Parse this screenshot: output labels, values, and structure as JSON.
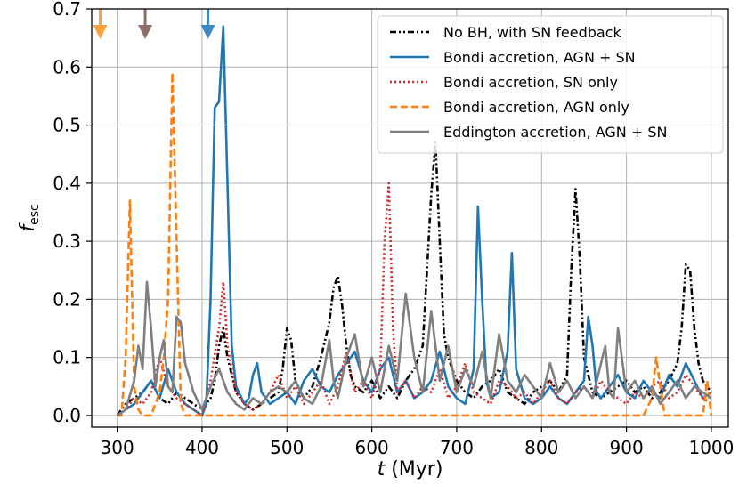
{
  "chart_data": {
    "type": "line",
    "xlabel_italic": "t",
    "xlabel_rest": " (Myr)",
    "ylabel_main": "f",
    "ylabel_sub": "esc",
    "xlim": [
      270,
      1020
    ],
    "ylim": [
      -0.02,
      0.7
    ],
    "xticks": [
      300,
      400,
      500,
      600,
      700,
      800,
      900,
      1000
    ],
    "yticks": [
      0.0,
      0.1,
      0.2,
      0.3,
      0.4,
      0.5,
      0.6,
      0.7
    ],
    "ytick_labels": [
      "0.0",
      "0.1",
      "0.2",
      "0.3",
      "0.4",
      "0.5",
      "0.6",
      "0.7"
    ],
    "grid": true,
    "legend_position": "top-right",
    "arrows": [
      {
        "x": 280,
        "color": "#ff9f3f",
        "name": "orange-arrow"
      },
      {
        "x": 333,
        "color": "#8c6d67",
        "name": "brown-arrow"
      },
      {
        "x": 407,
        "color": "#3d89c4",
        "name": "blue-arrow"
      }
    ],
    "series": [
      {
        "name": "No BH, with SN feedback",
        "color": "#000000",
        "dash": "7 3 2 3 2 3",
        "x": [
          300,
          310,
          320,
          330,
          340,
          350,
          360,
          370,
          380,
          390,
          400,
          410,
          415,
          420,
          425,
          430,
          440,
          450,
          460,
          470,
          480,
          490,
          495,
          500,
          505,
          510,
          520,
          530,
          540,
          550,
          555,
          560,
          565,
          570,
          575,
          580,
          590,
          600,
          610,
          615,
          620,
          625,
          630,
          640,
          650,
          660,
          665,
          670,
          675,
          680,
          685,
          690,
          700,
          710,
          720,
          730,
          740,
          750,
          760,
          770,
          780,
          790,
          800,
          810,
          820,
          830,
          835,
          840,
          845,
          850,
          860,
          870,
          880,
          890,
          900,
          910,
          920,
          930,
          940,
          950,
          960,
          965,
          970,
          975,
          980,
          985,
          990,
          1000
        ],
        "y": [
          0.0,
          0.02,
          0.03,
          0.04,
          0.06,
          0.03,
          0.02,
          0.04,
          0.03,
          0.02,
          0.01,
          0.03,
          0.06,
          0.12,
          0.15,
          0.1,
          0.04,
          0.02,
          0.01,
          0.02,
          0.03,
          0.04,
          0.08,
          0.15,
          0.13,
          0.06,
          0.03,
          0.05,
          0.1,
          0.16,
          0.22,
          0.24,
          0.19,
          0.12,
          0.07,
          0.05,
          0.04,
          0.06,
          0.03,
          0.04,
          0.05,
          0.04,
          0.03,
          0.06,
          0.08,
          0.12,
          0.25,
          0.38,
          0.47,
          0.3,
          0.14,
          0.1,
          0.06,
          0.04,
          0.03,
          0.05,
          0.06,
          0.08,
          0.04,
          0.03,
          0.02,
          0.04,
          0.05,
          0.06,
          0.04,
          0.07,
          0.25,
          0.39,
          0.27,
          0.1,
          0.04,
          0.03,
          0.04,
          0.05,
          0.06,
          0.04,
          0.05,
          0.03,
          0.04,
          0.06,
          0.09,
          0.15,
          0.26,
          0.25,
          0.15,
          0.09,
          0.06,
          0.04
        ]
      },
      {
        "name": "Bondi accretion, AGN + SN",
        "color": "#1f77b4",
        "dash": "",
        "x": [
          300,
          310,
          320,
          330,
          340,
          350,
          360,
          370,
          380,
          390,
          400,
          405,
          410,
          415,
          420,
          425,
          430,
          435,
          440,
          450,
          455,
          460,
          465,
          470,
          480,
          490,
          500,
          510,
          520,
          530,
          540,
          550,
          560,
          570,
          580,
          590,
          600,
          610,
          620,
          630,
          640,
          650,
          660,
          670,
          680,
          690,
          700,
          710,
          720,
          725,
          730,
          735,
          740,
          750,
          760,
          765,
          770,
          780,
          790,
          800,
          810,
          820,
          830,
          840,
          850,
          855,
          860,
          865,
          870,
          880,
          890,
          900,
          910,
          920,
          930,
          940,
          950,
          960,
          970,
          980,
          990,
          1000
        ],
        "y": [
          0.0,
          0.01,
          0.02,
          0.04,
          0.06,
          0.03,
          0.08,
          0.04,
          0.02,
          0.01,
          0.0,
          0.02,
          0.2,
          0.53,
          0.54,
          0.67,
          0.4,
          0.12,
          0.05,
          0.02,
          0.03,
          0.07,
          0.09,
          0.04,
          0.02,
          0.03,
          0.04,
          0.02,
          0.06,
          0.08,
          0.05,
          0.04,
          0.07,
          0.09,
          0.11,
          0.06,
          0.04,
          0.08,
          0.1,
          0.04,
          0.06,
          0.03,
          0.04,
          0.06,
          0.11,
          0.05,
          0.03,
          0.02,
          0.08,
          0.36,
          0.2,
          0.06,
          0.03,
          0.04,
          0.11,
          0.28,
          0.08,
          0.03,
          0.02,
          0.03,
          0.05,
          0.03,
          0.02,
          0.04,
          0.06,
          0.17,
          0.12,
          0.04,
          0.03,
          0.05,
          0.07,
          0.04,
          0.03,
          0.06,
          0.04,
          0.03,
          0.07,
          0.05,
          0.09,
          0.06,
          0.03,
          0.04
        ]
      },
      {
        "name": "Bondi accretion, SN only",
        "color": "#d62728",
        "dash": "2 3",
        "x": [
          300,
          310,
          320,
          330,
          340,
          350,
          360,
          370,
          380,
          390,
          400,
          410,
          420,
          425,
          430,
          440,
          450,
          460,
          470,
          480,
          490,
          500,
          510,
          520,
          530,
          540,
          550,
          560,
          570,
          580,
          590,
          600,
          610,
          615,
          620,
          625,
          630,
          640,
          650,
          660,
          670,
          680,
          690,
          700,
          710,
          720,
          730,
          740,
          750,
          760,
          770,
          780,
          790,
          800,
          810,
          820,
          830,
          840,
          850,
          860,
          870,
          880,
          890,
          900,
          910,
          920,
          930,
          940,
          950,
          960,
          970,
          980,
          990,
          1000
        ],
        "y": [
          0.0,
          0.01,
          0.03,
          0.02,
          0.04,
          0.1,
          0.05,
          0.03,
          0.02,
          0.01,
          0.0,
          0.06,
          0.15,
          0.23,
          0.12,
          0.04,
          0.02,
          0.01,
          0.02,
          0.04,
          0.07,
          0.03,
          0.05,
          0.02,
          0.04,
          0.06,
          0.02,
          0.05,
          0.11,
          0.04,
          0.06,
          0.03,
          0.08,
          0.3,
          0.4,
          0.15,
          0.04,
          0.06,
          0.03,
          0.05,
          0.04,
          0.08,
          0.03,
          0.05,
          0.09,
          0.04,
          0.03,
          0.02,
          0.06,
          0.05,
          0.03,
          0.04,
          0.02,
          0.04,
          0.06,
          0.03,
          0.02,
          0.04,
          0.05,
          0.03,
          0.06,
          0.04,
          0.03,
          0.02,
          0.04,
          0.03,
          0.05,
          0.06,
          0.03,
          0.04,
          0.07,
          0.05,
          0.03,
          0.02
        ]
      },
      {
        "name": "Bondi accretion, AGN only",
        "color": "#ff7f0e",
        "dash": "8 4",
        "x": [
          300,
          305,
          310,
          315,
          320,
          325,
          330,
          340,
          350,
          355,
          360,
          365,
          370,
          375,
          380,
          390,
          400,
          420,
          450,
          500,
          550,
          600,
          650,
          700,
          750,
          800,
          850,
          900,
          920,
          930,
          935,
          940,
          945,
          950,
          960,
          970,
          980,
          990,
          995,
          1000
        ],
        "y": [
          0.0,
          0.0,
          0.1,
          0.37,
          0.05,
          0.01,
          0.0,
          0.0,
          0.04,
          0.1,
          0.2,
          0.59,
          0.3,
          0.02,
          0.0,
          0.0,
          0.0,
          0.0,
          0.0,
          0.0,
          0.0,
          0.0,
          0.0,
          0.0,
          0.0,
          0.0,
          0.0,
          0.0,
          0.0,
          0.03,
          0.1,
          0.05,
          0.0,
          0.0,
          0.0,
          0.0,
          0.0,
          0.0,
          0.06,
          0.0
        ]
      },
      {
        "name": "Eddington accretion, AGN + SN",
        "color": "#7f7f7f",
        "dash": "",
        "x": [
          300,
          310,
          320,
          325,
          330,
          335,
          340,
          345,
          350,
          355,
          360,
          365,
          370,
          375,
          380,
          390,
          400,
          410,
          420,
          430,
          440,
          450,
          460,
          470,
          480,
          490,
          500,
          510,
          520,
          530,
          540,
          550,
          555,
          560,
          570,
          580,
          590,
          600,
          610,
          620,
          630,
          640,
          650,
          660,
          670,
          680,
          690,
          700,
          710,
          720,
          730,
          740,
          750,
          760,
          770,
          780,
          790,
          800,
          810,
          820,
          830,
          840,
          850,
          860,
          870,
          875,
          880,
          885,
          890,
          900,
          910,
          920,
          930,
          940,
          950,
          960,
          970,
          980,
          990,
          1000
        ],
        "y": [
          0.0,
          0.01,
          0.06,
          0.12,
          0.08,
          0.23,
          0.15,
          0.05,
          0.1,
          0.13,
          0.05,
          0.04,
          0.17,
          0.16,
          0.09,
          0.04,
          0.01,
          0.05,
          0.08,
          0.04,
          0.02,
          0.01,
          0.03,
          0.02,
          0.04,
          0.05,
          0.04,
          0.06,
          0.03,
          0.02,
          0.05,
          0.13,
          0.06,
          0.03,
          0.1,
          0.14,
          0.05,
          0.1,
          0.04,
          0.12,
          0.06,
          0.21,
          0.1,
          0.04,
          0.18,
          0.06,
          0.12,
          0.04,
          0.08,
          0.05,
          0.11,
          0.03,
          0.14,
          0.06,
          0.04,
          0.07,
          0.05,
          0.03,
          0.09,
          0.04,
          0.06,
          0.03,
          0.05,
          0.03,
          0.09,
          0.12,
          0.04,
          0.03,
          0.15,
          0.04,
          0.06,
          0.03,
          0.05,
          0.02,
          0.04,
          0.06,
          0.03,
          0.05,
          0.04,
          0.03
        ]
      }
    ]
  }
}
